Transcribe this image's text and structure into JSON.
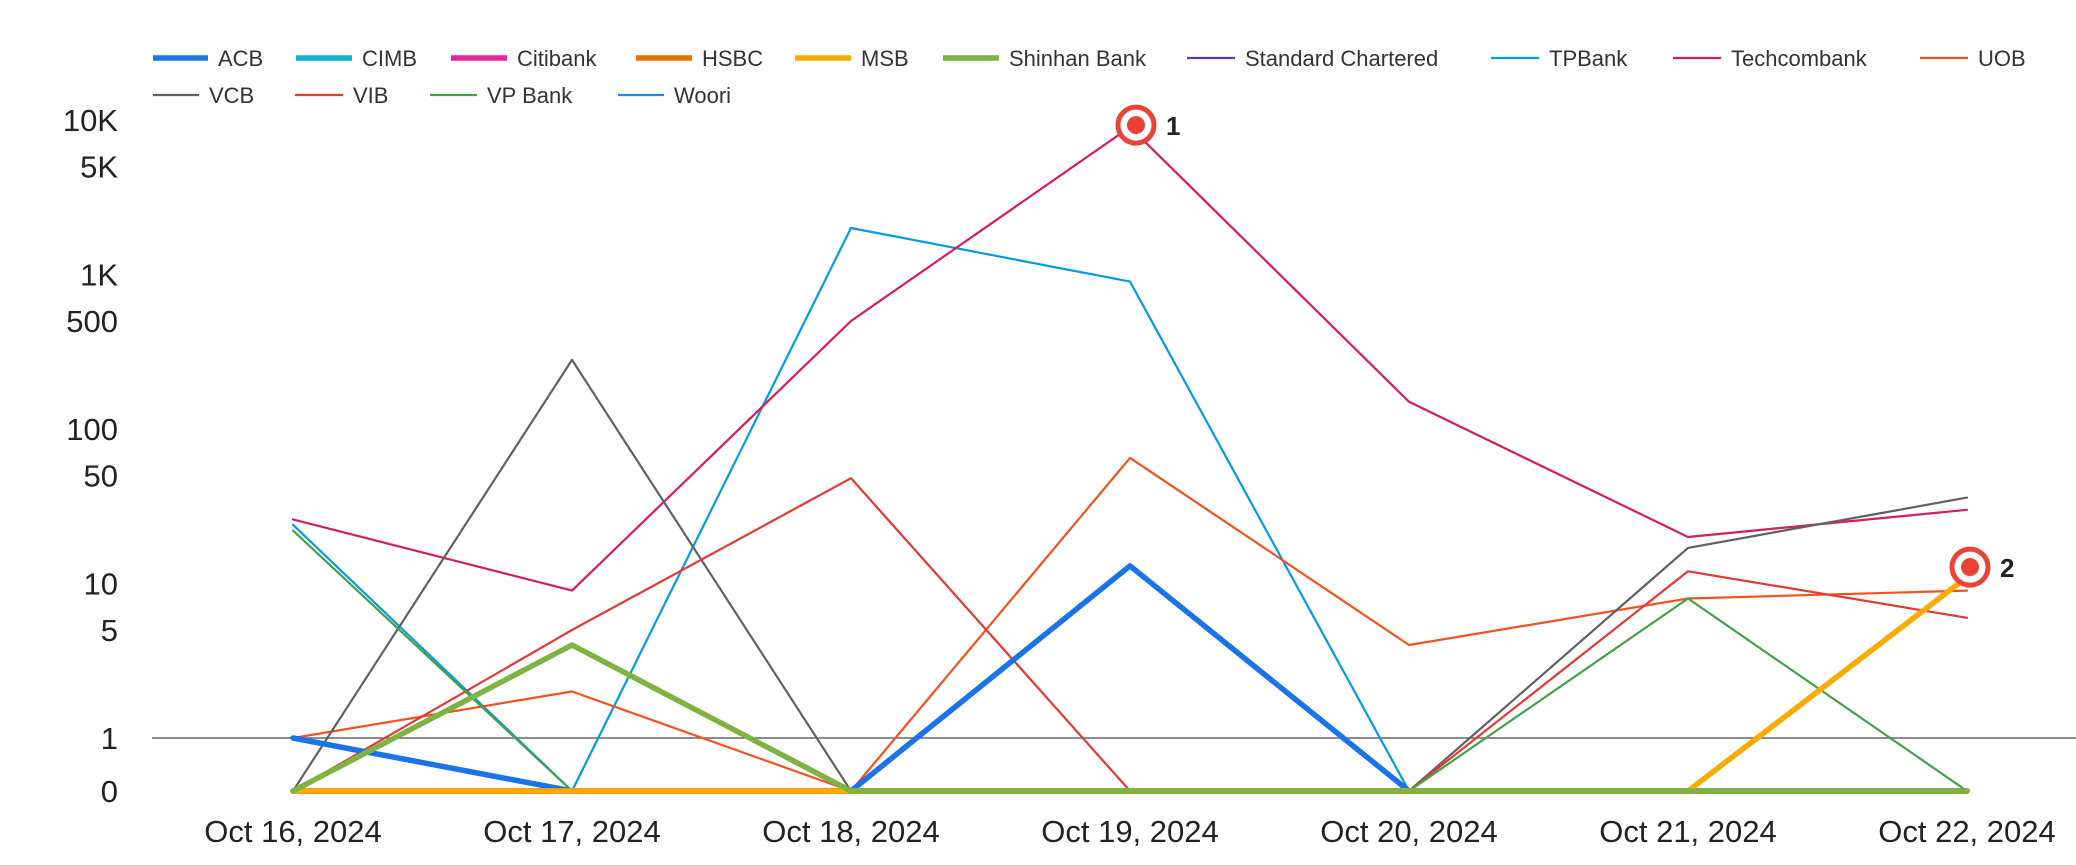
{
  "chart_data": {
    "type": "line",
    "title": "",
    "xlabel": "",
    "ylabel": "",
    "y_scale": "symlog",
    "y_ticks": [
      {
        "value": 0,
        "label": "0"
      },
      {
        "value": 1,
        "label": "1"
      },
      {
        "value": 5,
        "label": "5"
      },
      {
        "value": 10,
        "label": "10"
      },
      {
        "value": 50,
        "label": "50"
      },
      {
        "value": 100,
        "label": "100"
      },
      {
        "value": 500,
        "label": "500"
      },
      {
        "value": 1000,
        "label": "1K"
      },
      {
        "value": 5000,
        "label": "5K"
      },
      {
        "value": 10000,
        "label": "10K"
      }
    ],
    "baseline_value": 1,
    "legend_position": "top-left",
    "x": [
      "Oct 16, 2024",
      "Oct 17, 2024",
      "Oct 18, 2024",
      "Oct 19, 2024",
      "Oct 20, 2024",
      "Oct 21, 2024",
      "Oct 22, 2024"
    ],
    "series": [
      {
        "name": "ACB",
        "color": "#1a73e8",
        "bold": true,
        "values": [
          1,
          0,
          0,
          13,
          0,
          0,
          0
        ]
      },
      {
        "name": "CIMB",
        "color": "#12b5cb",
        "bold": true,
        "values": [
          0,
          0,
          0,
          0,
          0,
          0,
          0
        ]
      },
      {
        "name": "Citibank",
        "color": "#e52592",
        "bold": true,
        "values": [
          0,
          0,
          0,
          0,
          0,
          0,
          0
        ]
      },
      {
        "name": "HSBC",
        "color": "#e8710a",
        "bold": true,
        "values": [
          0,
          0,
          0,
          0,
          0,
          0,
          0
        ]
      },
      {
        "name": "MSB",
        "color": "#f9ab00",
        "bold": true,
        "values": [
          0,
          0,
          0,
          0,
          0,
          0,
          11
        ]
      },
      {
        "name": "Shinhan Bank",
        "color": "#7cb342",
        "bold": true,
        "values": [
          0,
          4,
          0,
          0,
          0,
          0,
          0
        ]
      },
      {
        "name": "Standard Chartered",
        "color": "#5e35b1",
        "bold": false,
        "values": [
          0,
          0,
          0,
          0,
          0,
          0,
          0
        ]
      },
      {
        "name": "TPBank",
        "color": "#039be5",
        "bold": false,
        "values": [
          24,
          0,
          2000,
          900,
          0,
          0,
          0
        ]
      },
      {
        "name": "Techcombank",
        "color": "#d81b60",
        "bold": false,
        "values": [
          26,
          9,
          500,
          9000,
          150,
          20,
          30
        ]
      },
      {
        "name": "UOB",
        "color": "#f4511e",
        "bold": false,
        "values": [
          1,
          2,
          0,
          65,
          4,
          8,
          9
        ]
      },
      {
        "name": "VCB",
        "color": "#616161",
        "bold": false,
        "values": [
          0,
          280,
          0,
          0,
          0,
          17,
          36
        ]
      },
      {
        "name": "VIB",
        "color": "#e53935",
        "bold": false,
        "values": [
          0,
          5,
          48,
          0,
          0,
          12,
          6
        ]
      },
      {
        "name": "VP Bank",
        "color": "#43a047",
        "bold": false,
        "values": [
          22,
          0,
          0,
          0,
          0,
          8,
          0
        ]
      },
      {
        "name": "Woori",
        "color": "#1e88e5",
        "bold": false,
        "values": [
          0,
          0,
          0,
          0,
          0,
          0,
          0
        ]
      }
    ],
    "annotations": [
      {
        "label": "1",
        "series": "Techcombank",
        "x": "Oct 19, 2024",
        "y": 9000
      },
      {
        "label": "2",
        "series": "MSB",
        "x": "Oct 22, 2024",
        "y": 11
      }
    ],
    "annotation_color": "#ea4335"
  }
}
